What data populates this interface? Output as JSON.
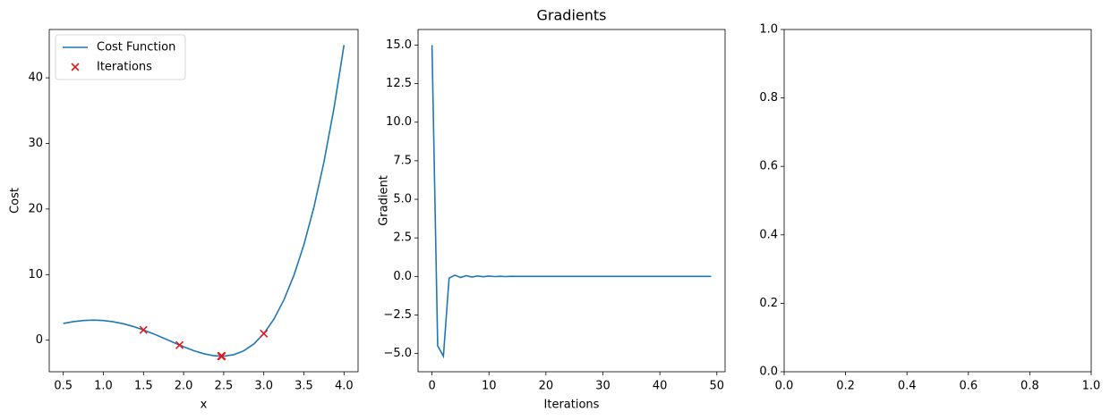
{
  "chart_data": [
    {
      "type": "line",
      "xlabel": "x",
      "ylabel": "Cost",
      "xlim": [
        0.325,
        4.175
      ],
      "xticks": [
        {
          "value": 0.5,
          "label": "0.5"
        },
        {
          "value": 1,
          "label": "1.0"
        },
        {
          "value": 1.5,
          "label": "1.5"
        },
        {
          "value": 2,
          "label": "2.0"
        },
        {
          "value": 2.5,
          "label": "2.5"
        },
        {
          "value": 3,
          "label": "3.0"
        },
        {
          "value": 3.5,
          "label": "3.5"
        },
        {
          "value": 4,
          "label": "4.0"
        }
      ],
      "ylim": [
        -4.81,
        47.37
      ],
      "yticks": [
        0,
        10,
        20,
        30,
        40
      ],
      "legend": "upper left",
      "series": [
        {
          "name": "Cost Function",
          "style": "line",
          "color": "#1f77b4",
          "x": [
            0.5,
            0.625,
            0.75,
            0.875,
            1.0,
            1.125,
            1.25,
            1.375,
            1.5,
            1.625,
            1.75,
            1.875,
            2.0,
            2.125,
            2.25,
            2.375,
            2.5,
            2.625,
            2.75,
            2.875,
            3.0,
            3.125,
            3.25,
            3.375,
            3.5,
            3.625,
            3.75,
            3.875,
            4.0
          ],
          "values": [
            2.56,
            2.83,
            3.0,
            3.06,
            3.0,
            2.81,
            2.5,
            2.08,
            1.56,
            0.97,
            0.32,
            -0.35,
            -1.0,
            -1.59,
            -2.06,
            -2.36,
            -2.44,
            -2.21,
            -1.62,
            -0.58,
            1.0,
            3.2,
            6.13,
            9.88,
            14.56,
            20.29,
            27.19,
            35.38,
            45.0
          ]
        },
        {
          "name": "Iterations",
          "style": "scatter",
          "color": "#e41a1c",
          "x": [
            3.0,
            1.5,
            1.95,
            2.467,
            2.478,
            2.47,
            2.475,
            2.472
          ],
          "values": [
            1.0,
            1.56,
            -0.75,
            -2.44,
            -2.44,
            -2.44,
            -2.44,
            -2.44
          ]
        }
      ]
    },
    {
      "type": "line",
      "title": "Gradients",
      "xlabel": "Iterations",
      "ylabel": "Gradient",
      "xlim": [
        -2.45,
        51.45
      ],
      "xticks": [
        0,
        10,
        20,
        30,
        40,
        50
      ],
      "ylim": [
        -6.18,
        16.01
      ],
      "yticks": [
        {
          "value": -5,
          "label": "−5.0"
        },
        {
          "value": -2.5,
          "label": "−2.5"
        },
        {
          "value": 0,
          "label": "0.0"
        },
        {
          "value": 2.5,
          "label": "2.5"
        },
        {
          "value": 5,
          "label": "5.0"
        },
        {
          "value": 7.5,
          "label": "7.5"
        },
        {
          "value": 10,
          "label": "10.0"
        },
        {
          "value": 12.5,
          "label": "12.5"
        },
        {
          "value": 15,
          "label": "15.0"
        }
      ],
      "series": [
        {
          "style": "line",
          "color": "#1f77b4",
          "x": [
            0,
            1,
            2,
            3,
            4,
            5,
            6,
            7,
            8,
            9,
            10,
            11,
            12,
            13,
            14,
            15,
            16,
            17,
            18,
            19,
            20,
            21,
            22,
            23,
            24,
            25,
            26,
            27,
            28,
            29,
            30,
            31,
            32,
            33,
            34,
            35,
            36,
            37,
            38,
            39,
            40,
            41,
            42,
            43,
            44,
            45,
            46,
            47,
            48,
            49
          ],
          "values": [
            15.0,
            -4.5,
            -5.17,
            -0.11,
            0.08,
            -0.07,
            0.05,
            -0.04,
            0.03,
            -0.02,
            0.02,
            -0.01,
            0.01,
            -0.01,
            0.01,
            0,
            0,
            0,
            0,
            0,
            0,
            0,
            0,
            0,
            0,
            0,
            0,
            0,
            0,
            0,
            0,
            0,
            0,
            0,
            0,
            0,
            0,
            0,
            0,
            0,
            0,
            0,
            0,
            0,
            0,
            0,
            0,
            0,
            0,
            0
          ]
        }
      ]
    },
    {
      "type": "axes",
      "xlim": [
        0,
        1
      ],
      "ylim": [
        0,
        1
      ],
      "xticks": [
        {
          "value": 0,
          "label": "0.0"
        },
        {
          "value": 0.2,
          "label": "0.2"
        },
        {
          "value": 0.4,
          "label": "0.4"
        },
        {
          "value": 0.6,
          "label": "0.6"
        },
        {
          "value": 0.8,
          "label": "0.8"
        },
        {
          "value": 1,
          "label": "1.0"
        }
      ],
      "yticks": [
        {
          "value": 0,
          "label": "0.0"
        },
        {
          "value": 0.2,
          "label": "0.2"
        },
        {
          "value": 0.4,
          "label": "0.4"
        },
        {
          "value": 0.6,
          "label": "0.6"
        },
        {
          "value": 0.8,
          "label": "0.8"
        },
        {
          "value": 1,
          "label": "1.0"
        }
      ],
      "series": []
    }
  ]
}
